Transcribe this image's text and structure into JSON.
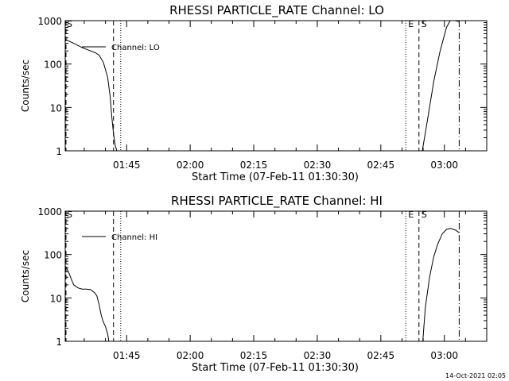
{
  "footer": {
    "timestamp": "14-Oct-2021 02:05"
  },
  "chart_data": [
    {
      "type": "line",
      "title": "RHESSI PARTICLE_RATE Channel: LO",
      "ylabel": "Counts/sec",
      "xlabel": "Start Time (07-Feb-11 01:30:30)",
      "yscale": "log",
      "ylim": [
        1,
        1000
      ],
      "xlim_minutes": [
        0,
        99.5
      ],
      "x_ticks": [
        "01:45",
        "02:00",
        "02:15",
        "02:30",
        "02:45",
        "03:00"
      ],
      "y_ticks": [
        "1",
        "10",
        "100",
        "1000"
      ],
      "legend": "Channel: LO",
      "legend_position": "top-left",
      "markers": [
        {
          "label": "S",
          "style": "dashed",
          "x_minutes": 0
        },
        {
          "label": "",
          "style": "dashed",
          "x_minutes": 11.4
        },
        {
          "label": "",
          "style": "dotted",
          "x_minutes": 13.1
        },
        {
          "label": "E",
          "style": "dotted",
          "x_minutes": 80.4
        },
        {
          "label": "S",
          "style": "dashed",
          "x_minutes": 83.5
        },
        {
          "label": "",
          "style": "dashdot",
          "x_minutes": 93.0
        }
      ],
      "series": [
        {
          "name": "Channel: LO",
          "x": [
            0,
            2,
            4,
            6,
            7,
            8,
            9,
            10,
            10.6,
            11.0,
            11.4,
            11.8,
            12.2,
            null,
            84.3,
            85.5,
            87,
            88.5,
            90,
            91,
            92,
            93
          ],
          "y": [
            370,
            300,
            240,
            200,
            185,
            160,
            110,
            50,
            18,
            6,
            2.5,
            1.3,
            1.0,
            null,
            1.0,
            5,
            40,
            200,
            700,
            1050,
            1000,
            950
          ]
        }
      ]
    },
    {
      "type": "line",
      "title": "RHESSI PARTICLE_RATE Channel: HI",
      "ylabel": "Counts/sec",
      "xlabel": "Start Time (07-Feb-11 01:30:30)",
      "yscale": "log",
      "ylim": [
        1,
        1000
      ],
      "xlim_minutes": [
        0,
        99.5
      ],
      "x_ticks": [
        "01:45",
        "02:00",
        "02:15",
        "02:30",
        "02:45",
        "03:00"
      ],
      "y_ticks": [
        "1",
        "10",
        "100",
        "1000"
      ],
      "legend": "Channel: HI",
      "legend_position": "top-left",
      "markers": [
        {
          "label": "S",
          "style": "dashed",
          "x_minutes": 0
        },
        {
          "label": "",
          "style": "dashed",
          "x_minutes": 11.4
        },
        {
          "label": "",
          "style": "dotted",
          "x_minutes": 13.1
        },
        {
          "label": "E",
          "style": "dotted",
          "x_minutes": 80.4
        },
        {
          "label": "S",
          "style": "dashed",
          "x_minutes": 83.5
        },
        {
          "label": "",
          "style": "dashdot",
          "x_minutes": 93.0
        }
      ],
      "series": [
        {
          "name": "Channel: HI",
          "x": [
            0,
            0.5,
            1,
            1.5,
            2,
            3,
            4,
            5,
            6,
            7,
            7.5,
            8,
            8.5,
            9,
            9.5,
            10,
            10.3,
            null,
            84.4,
            85,
            86,
            87,
            88,
            89,
            90,
            91,
            92,
            93
          ],
          "y": [
            55,
            45,
            35,
            26,
            20,
            17,
            16,
            16,
            15.5,
            13,
            11,
            7,
            4,
            2.8,
            2.2,
            1.5,
            1.0,
            null,
            1.0,
            6,
            30,
            90,
            180,
            300,
            380,
            400,
            370,
            320
          ]
        }
      ]
    }
  ]
}
